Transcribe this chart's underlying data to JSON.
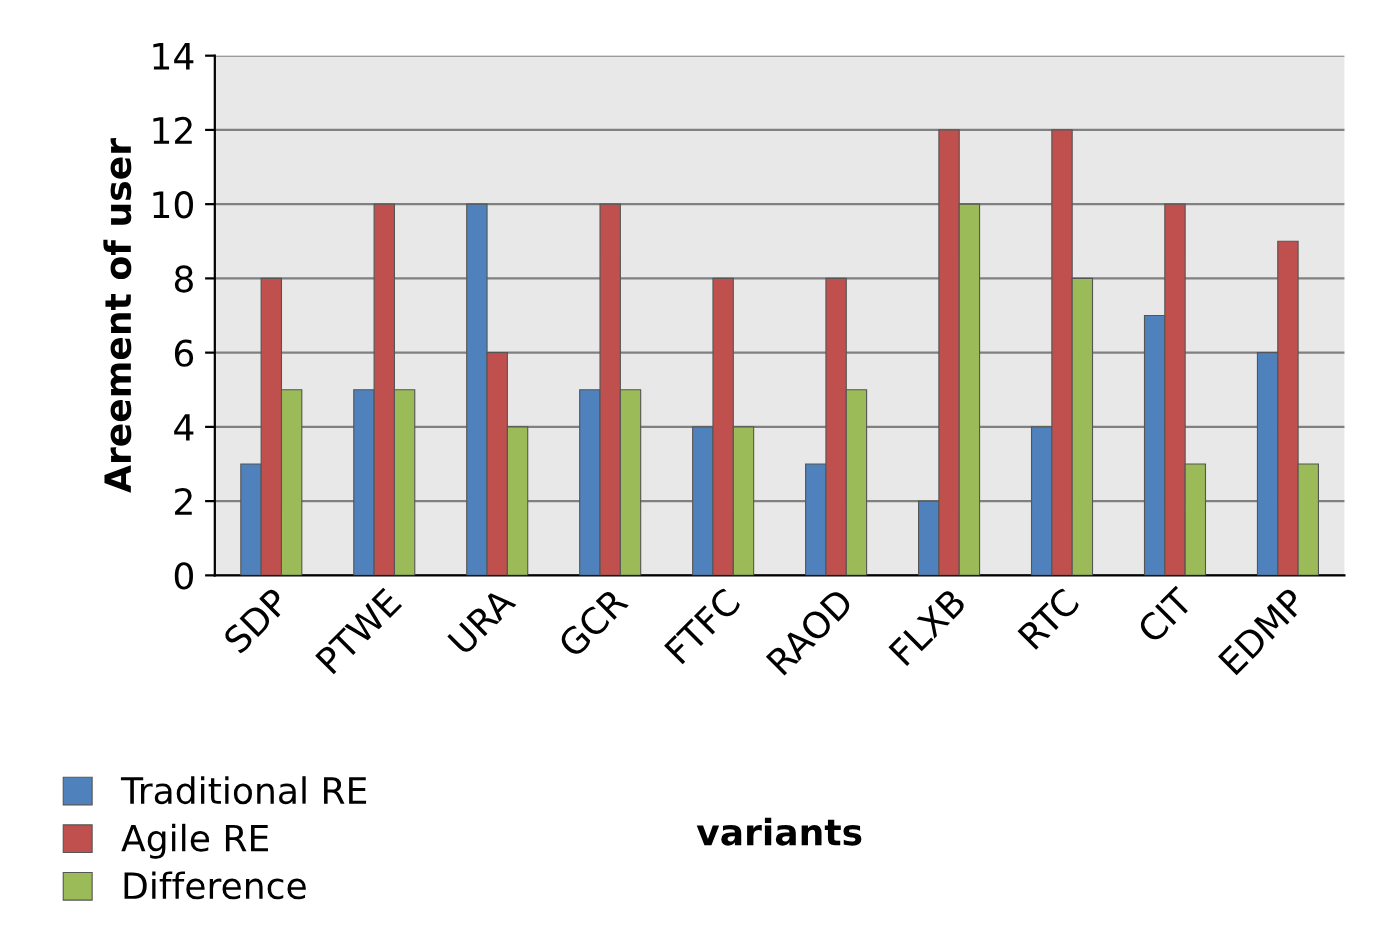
{
  "chart_data": {
    "type": "bar",
    "xlabel": "variants",
    "ylabel": "Areement of user",
    "categories": [
      "SDP",
      "PTWE",
      "URA",
      "GCR",
      "FTFC",
      "RAOD",
      "FLXB",
      "RTC",
      "CIT",
      "EDMP"
    ],
    "series": [
      {
        "name": "Traditional RE",
        "color": "#4f81bd",
        "values": [
          3,
          5,
          10,
          5,
          4,
          3,
          2,
          4,
          7,
          6
        ]
      },
      {
        "name": "Agile RE",
        "color": "#c0504d",
        "values": [
          8,
          10,
          6,
          10,
          8,
          8,
          12,
          12,
          10,
          9
        ]
      },
      {
        "name": "Difference",
        "color": "#9bbb59",
        "values": [
          5,
          5,
          4,
          5,
          4,
          5,
          10,
          8,
          3,
          3
        ]
      }
    ],
    "ylim": [
      0,
      14
    ],
    "yticks": [
      0,
      2,
      4,
      6,
      8,
      10,
      12,
      14
    ],
    "grid": "y",
    "legend": "bottom left"
  }
}
